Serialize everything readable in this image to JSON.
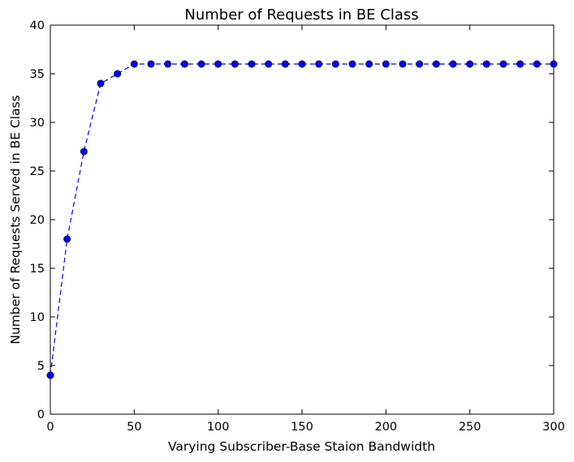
{
  "chart_data": {
    "type": "line",
    "title": "Number of Requests in BE Class",
    "xlabel": "Varying Subscriber-Base Staion Bandwidth",
    "ylabel": "Number of Requests Served in BE Class",
    "xlim": [
      0,
      300
    ],
    "ylim": [
      0,
      40
    ],
    "xticks": [
      0,
      50,
      100,
      150,
      200,
      250,
      300
    ],
    "yticks": [
      0,
      5,
      10,
      15,
      20,
      25,
      30,
      35,
      40
    ],
    "grid": false,
    "line_style": "dashed",
    "marker": "circle",
    "series": [
      {
        "color": "#0000ff",
        "x": [
          0,
          10,
          20,
          30,
          40,
          50,
          60,
          70,
          80,
          90,
          100,
          110,
          120,
          130,
          140,
          150,
          160,
          170,
          180,
          190,
          200,
          210,
          220,
          230,
          240,
          250,
          260,
          270,
          280,
          290,
          300
        ],
        "y": [
          4,
          18,
          27,
          34,
          35,
          36,
          36,
          36,
          36,
          36,
          36,
          36,
          36,
          36,
          36,
          36,
          36,
          36,
          36,
          36,
          36,
          36,
          36,
          36,
          36,
          36,
          36,
          36,
          36,
          36,
          36
        ]
      }
    ]
  }
}
